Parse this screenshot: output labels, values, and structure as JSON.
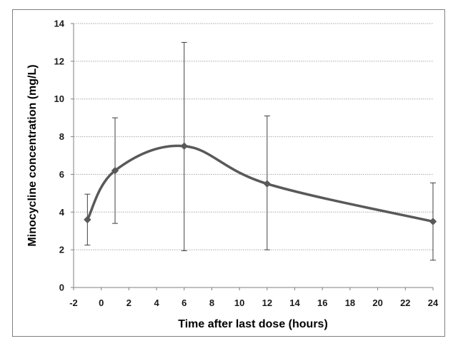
{
  "chart_data": {
    "type": "line",
    "title": "",
    "xlabel": "Time after last dose (hours)",
    "ylabel": "Minocycline concentration (mg/L)",
    "xlim": [
      -2,
      24
    ],
    "ylim": [
      0,
      14
    ],
    "x_ticks": [
      "-2",
      "0",
      "2",
      "4",
      "6",
      "8",
      "10",
      "12",
      "14",
      "16",
      "18",
      "20",
      "22",
      "24"
    ],
    "y_ticks": [
      "0",
      "2",
      "4",
      "6",
      "8",
      "10",
      "12",
      "14"
    ],
    "grid": "horizontal",
    "line_color": "#595959",
    "grid_color": "#a6a6a6",
    "series": [
      {
        "x": [
          -1,
          1,
          6,
          12,
          24
        ],
        "y": [
          3.6,
          6.2,
          7.5,
          5.5,
          3.5
        ],
        "error_low": [
          2.25,
          3.4,
          1.95,
          2.0,
          1.45
        ],
        "error_high": [
          4.95,
          9.0,
          13.0,
          9.1,
          5.55
        ]
      }
    ]
  }
}
